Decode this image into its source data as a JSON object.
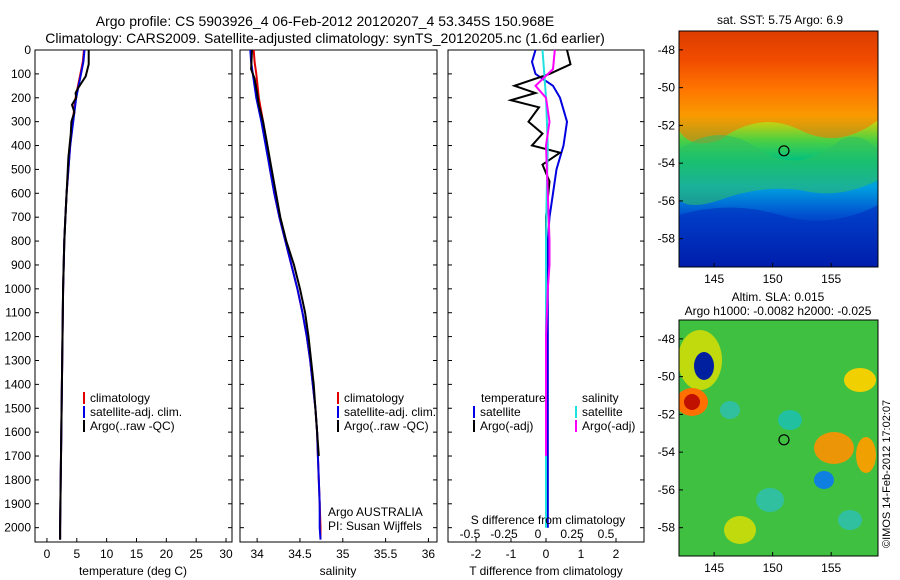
{
  "title_line1": "Argo profile: CS 5903926_4 06-Feb-2012 20120207_4 53.345S 150.968E",
  "title_line2": "Climatology: CARS2009. Satellite-adjusted climatology: synTS_20120205.nc (1.6d earlier)",
  "stamp": "©IMOS 14-Feb-2012 17:02:07",
  "argo_source": "Argo AUSTRALIA",
  "argo_pi": "PI: Susan Wijffels",
  "sst_title": "sat. SST: 5.75 Argo: 6.9",
  "sla_title1": "Altim. SLA: 0.015",
  "sla_title2": "Argo h1000: -0.0082 h2000: -0.025",
  "colors": {
    "climatology": "#e00000",
    "satellite": "#0000e0",
    "argo": "#000000",
    "sat_sal": "#20e0e0",
    "argo_sal": "#ff00ff"
  },
  "chart_data": [
    {
      "type": "line",
      "xlabel": "temperature (deg C)",
      "ylabel": "",
      "xlim": [
        -2,
        31
      ],
      "ylim": [
        2060,
        0
      ],
      "xticks": [
        0,
        5,
        10,
        15,
        20,
        25,
        30
      ],
      "yticks": [
        0,
        100,
        200,
        300,
        400,
        500,
        600,
        700,
        800,
        900,
        1000,
        1100,
        1200,
        1300,
        1400,
        1500,
        1600,
        1700,
        1800,
        1900,
        2000
      ],
      "legend": [
        "climatology",
        "satellite-adj. clim.",
        "Argo(..raw -QC)"
      ],
      "series": [
        {
          "name": "climatology",
          "color": "climatology",
          "points": [
            [
              6.2,
              0
            ],
            [
              6.0,
              50
            ],
            [
              5.6,
              100
            ],
            [
              4.8,
              200
            ],
            [
              4.3,
              300
            ],
            [
              3.9,
              400
            ],
            [
              3.6,
              500
            ],
            [
              3.3,
              600
            ],
            [
              3.1,
              700
            ],
            [
              2.9,
              800
            ],
            [
              2.8,
              900
            ],
            [
              2.7,
              1000
            ],
            [
              2.6,
              1200
            ],
            [
              2.5,
              1400
            ],
            [
              2.4,
              1600
            ],
            [
              2.3,
              1800
            ],
            [
              2.2,
              2000
            ],
            [
              2.2,
              2050
            ]
          ]
        },
        {
          "name": "satellite-adj. clim.",
          "color": "satellite",
          "points": [
            [
              6.3,
              0
            ],
            [
              6.1,
              50
            ],
            [
              5.7,
              100
            ],
            [
              4.9,
              200
            ],
            [
              4.4,
              300
            ],
            [
              3.9,
              400
            ],
            [
              3.6,
              500
            ],
            [
              3.3,
              600
            ],
            [
              3.1,
              700
            ],
            [
              2.9,
              800
            ],
            [
              2.8,
              900
            ],
            [
              2.7,
              1000
            ],
            [
              2.6,
              1200
            ],
            [
              2.5,
              1400
            ],
            [
              2.4,
              1600
            ],
            [
              2.3,
              1800
            ],
            [
              2.2,
              2000
            ],
            [
              2.2,
              2050
            ]
          ]
        },
        {
          "name": "Argo(..raw -QC)",
          "color": "argo",
          "points": [
            [
              7.0,
              0
            ],
            [
              7.0,
              60
            ],
            [
              6.5,
              110
            ],
            [
              5.2,
              160
            ],
            [
              4.8,
              180
            ],
            [
              4.9,
              200
            ],
            [
              4.2,
              230
            ],
            [
              4.6,
              260
            ],
            [
              4.1,
              300
            ],
            [
              4.0,
              350
            ],
            [
              3.8,
              400
            ],
            [
              3.6,
              450
            ],
            [
              3.5,
              500
            ],
            [
              3.3,
              600
            ],
            [
              3.1,
              700
            ],
            [
              2.9,
              800
            ],
            [
              2.8,
              900
            ],
            [
              2.7,
              1000
            ],
            [
              2.6,
              1200
            ],
            [
              2.5,
              1400
            ],
            [
              2.4,
              1600
            ],
            [
              2.3,
              1800
            ],
            [
              2.2,
              2000
            ],
            [
              2.2,
              2050
            ]
          ]
        }
      ]
    },
    {
      "type": "line",
      "xlabel": "salinity",
      "ylabel": "",
      "xlim": [
        33.8,
        36.1
      ],
      "ylim": [
        2060,
        0
      ],
      "xticks": [
        34,
        34.5,
        35,
        35.5,
        36
      ],
      "legend": [
        "climatology",
        "satellite-adj. clim.",
        "Argo(..raw -QC)"
      ],
      "series": [
        {
          "name": "climatology",
          "color": "climatology",
          "points": [
            [
              33.96,
              0
            ],
            [
              33.97,
              50
            ],
            [
              33.99,
              100
            ],
            [
              34.02,
              200
            ],
            [
              34.07,
              300
            ],
            [
              34.11,
              400
            ],
            [
              34.15,
              500
            ],
            [
              34.2,
              600
            ],
            [
              34.26,
              700
            ],
            [
              34.33,
              800
            ],
            [
              34.4,
              900
            ],
            [
              34.47,
              1000
            ],
            [
              34.53,
              1100
            ],
            [
              34.58,
              1200
            ],
            [
              34.62,
              1300
            ],
            [
              34.65,
              1400
            ],
            [
              34.68,
              1500
            ],
            [
              34.7,
              1600
            ],
            [
              34.71,
              1700
            ],
            [
              34.72,
              1800
            ],
            [
              34.73,
              1900
            ],
            [
              34.74,
              2000
            ],
            [
              34.74,
              2050
            ]
          ]
        },
        {
          "name": "satellite-adj. clim.",
          "color": "satellite",
          "points": [
            [
              33.92,
              0
            ],
            [
              33.93,
              50
            ],
            [
              33.95,
              100
            ],
            [
              33.99,
              200
            ],
            [
              34.05,
              300
            ],
            [
              34.1,
              400
            ],
            [
              34.15,
              500
            ],
            [
              34.2,
              600
            ],
            [
              34.26,
              700
            ],
            [
              34.33,
              800
            ],
            [
              34.4,
              900
            ],
            [
              34.47,
              1000
            ],
            [
              34.53,
              1100
            ],
            [
              34.58,
              1200
            ],
            [
              34.62,
              1300
            ],
            [
              34.65,
              1400
            ],
            [
              34.68,
              1500
            ],
            [
              34.7,
              1600
            ],
            [
              34.71,
              1700
            ],
            [
              34.72,
              1800
            ],
            [
              34.73,
              1900
            ],
            [
              34.73,
              2000
            ],
            [
              34.74,
              2050
            ]
          ]
        },
        {
          "name": "Argo(..raw -QC)",
          "color": "argo",
          "points": [
            [
              33.94,
              0
            ],
            [
              33.93,
              80
            ],
            [
              33.97,
              120
            ],
            [
              34.0,
              180
            ],
            [
              34.02,
              230
            ],
            [
              34.07,
              300
            ],
            [
              34.11,
              380
            ],
            [
              34.16,
              480
            ],
            [
              34.21,
              580
            ],
            [
              34.27,
              700
            ],
            [
              34.34,
              800
            ],
            [
              34.43,
              900
            ],
            [
              34.5,
              1000
            ],
            [
              34.56,
              1100
            ],
            [
              34.6,
              1200
            ],
            [
              34.63,
              1300
            ],
            [
              34.66,
              1400
            ],
            [
              34.68,
              1500
            ],
            [
              34.7,
              1600
            ],
            [
              34.72,
              1700
            ]
          ]
        }
      ]
    },
    {
      "type": "line",
      "xlabel": "T difference from climatology",
      "ylabel": "",
      "xlim": [
        -2.8,
        2.8
      ],
      "ylim": [
        2060,
        0
      ],
      "xticks": [
        -2,
        -1,
        0,
        1,
        2
      ],
      "xlabel_top": "S difference from climatology",
      "xticks_top": [
        "-0.5",
        "-0.25",
        "0",
        "0.25",
        "0.5"
      ],
      "legend_left_title": "temperature",
      "legend_right_title": "salinity",
      "legend": [
        "satellite",
        "Argo(-adj)",
        "satellite",
        "Argo(-adj)"
      ],
      "series": [
        {
          "name": "satellite",
          "color": "satellite",
          "points": [
            [
              -0.3,
              0
            ],
            [
              -0.4,
              50
            ],
            [
              -0.3,
              100
            ],
            [
              0.2,
              150
            ],
            [
              0.4,
              200
            ],
            [
              0.5,
              250
            ],
            [
              0.6,
              300
            ],
            [
              0.5,
              400
            ],
            [
              0.3,
              500
            ],
            [
              0.2,
              600
            ],
            [
              0.1,
              700
            ],
            [
              0.05,
              800
            ],
            [
              0.05,
              1000
            ],
            [
              0.05,
              2000
            ]
          ]
        },
        {
          "name": "Argo(-adj)",
          "color": "argo",
          "points": [
            [
              0.6,
              0
            ],
            [
              0.7,
              60
            ],
            [
              0.1,
              100
            ],
            [
              -0.9,
              150
            ],
            [
              -0.3,
              180
            ],
            [
              -1.0,
              210
            ],
            [
              -0.2,
              240
            ],
            [
              -0.5,
              300
            ],
            [
              -0.1,
              350
            ],
            [
              -0.4,
              400
            ],
            [
              0.4,
              430
            ],
            [
              -0.1,
              480
            ],
            [
              0.1,
              550
            ],
            [
              0.0,
              700
            ],
            [
              0.0,
              900
            ],
            [
              0.0,
              1200
            ],
            [
              0.0,
              1500
            ]
          ]
        },
        {
          "name": "satellite",
          "color": "sat_sal",
          "points": [
            [
              -0.1,
              0
            ],
            [
              -0.05,
              100
            ],
            [
              0.0,
              200
            ],
            [
              0.05,
              400
            ],
            [
              0.02,
              600
            ],
            [
              0.0,
              800
            ],
            [
              0.0,
              1000
            ],
            [
              0.0,
              1200
            ],
            [
              0.0,
              1500
            ],
            [
              0.0,
              2000
            ]
          ]
        },
        {
          "name": "Argo(-adj)",
          "color": "argo_sal",
          "points": [
            [
              0.25,
              0
            ],
            [
              0.2,
              80
            ],
            [
              -0.3,
              150
            ],
            [
              0.0,
              200
            ],
            [
              0.1,
              300
            ],
            [
              0.0,
              400
            ],
            [
              0.05,
              600
            ],
            [
              0.1,
              800
            ],
            [
              0.1,
              900
            ],
            [
              0.05,
              1000
            ],
            [
              0.0,
              1200
            ],
            [
              0.0,
              1500
            ],
            [
              0.0,
              1700
            ]
          ]
        }
      ]
    },
    {
      "type": "heatmap",
      "title": "sat. SST: 5.75 Argo: 6.9",
      "xlim": [
        142,
        159
      ],
      "ylim": [
        -59.5,
        -47
      ],
      "xticks": [
        145,
        150,
        155
      ],
      "yticks": [
        -48,
        -50,
        -52,
        -54,
        -56,
        -58
      ],
      "marker": {
        "lon": 150.968,
        "lat": -53.345
      }
    },
    {
      "type": "heatmap",
      "title": "Altim. SLA: 0.015",
      "xlim": [
        142,
        159
      ],
      "ylim": [
        -59.5,
        -47
      ],
      "xticks": [
        145,
        150,
        155
      ],
      "yticks": [
        -48,
        -50,
        -52,
        -54,
        -56,
        -58
      ],
      "marker": {
        "lon": 150.968,
        "lat": -53.345
      }
    }
  ]
}
